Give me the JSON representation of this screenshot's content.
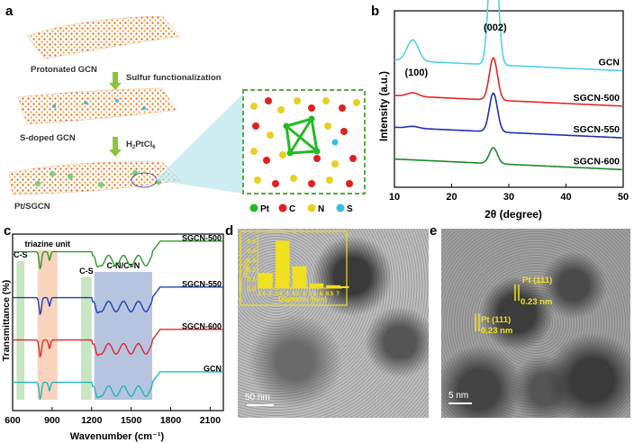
{
  "panel_labels": {
    "a": "a",
    "b": "b",
    "c": "c",
    "d": "d",
    "e": "e"
  },
  "panel_a": {
    "sheet1_label": "Protonated GCN",
    "step1": "Sulfur  functionalization",
    "sheet2_label": "S-doped GCN",
    "step2_main": "H",
    "step2_sub1": "2",
    "step2_mid": "PtCl",
    "step2_sub2": "6",
    "sheet3_label": "Pt/SGCN",
    "legend": [
      {
        "label": "Pt",
        "color": "#22bb22"
      },
      {
        "label": "C",
        "color": "#e02020"
      },
      {
        "label": "N",
        "color": "#e8d020"
      },
      {
        "label": "S",
        "color": "#33c0e0"
      }
    ]
  },
  "chart_data": [
    {
      "panel": "b",
      "type": "line",
      "xlabel": "2θ (degree)",
      "ylabel": "Intensity (a.u.)",
      "xlim": [
        10,
        50
      ],
      "xticks": [
        "10",
        "20",
        "30",
        "40",
        "50"
      ],
      "annotations": [
        {
          "text": "(100)",
          "x": 13.2
        },
        {
          "text": "(002)",
          "x": 27.3
        }
      ],
      "series": [
        {
          "name": "GCN",
          "color": "#4fd2e6",
          "baseline": 0.66,
          "peak002": 0.9,
          "peak100": 0.12
        },
        {
          "name": "SGCN-500",
          "color": "#e02828",
          "baseline": 0.46,
          "peak002": 0.24,
          "peak100": 0.02
        },
        {
          "name": "SGCN-550",
          "color": "#2030b0",
          "baseline": 0.28,
          "peak002": 0.22,
          "peak100": 0.01
        },
        {
          "name": "SGCN-600",
          "color": "#1a8a2a",
          "baseline": 0.1,
          "peak002": 0.09,
          "peak100": 0.0
        }
      ]
    },
    {
      "panel": "c",
      "type": "line",
      "xlabel": "Wavenumber (cm⁻¹)",
      "ylabel": "Transmittance (%)",
      "xlim": [
        600,
        2200
      ],
      "xticks": [
        "600",
        "900",
        "1200",
        "1500",
        "1800",
        "2100"
      ],
      "bands": [
        {
          "label": "C-S",
          "range": [
            630,
            690
          ],
          "color": "#b7dcb0"
        },
        {
          "label": "triazine unit",
          "range": [
            790,
            940
          ],
          "color": "#f6c4a8"
        },
        {
          "label": "C-S",
          "range": [
            1120,
            1200
          ],
          "color": "#b7dcb0"
        },
        {
          "label": "C-N/C=N",
          "range": [
            1220,
            1660
          ],
          "color": "#9fb0d6"
        }
      ],
      "series": [
        {
          "name": "SGCN-500",
          "color": "#2e9a2e",
          "offset": 0.9
        },
        {
          "name": "SGCN-550",
          "color": "#2040b0",
          "offset": 0.64
        },
        {
          "name": "SGCN-600",
          "color": "#e02828",
          "offset": 0.4
        },
        {
          "name": "GCN",
          "color": "#20b8b8",
          "offset": 0.16
        }
      ]
    },
    {
      "panel": "d-inset",
      "type": "bar",
      "xlabel": "Diameter (nm)",
      "ylabel": "Ratio",
      "ylim": [
        0,
        0.55
      ],
      "yticks": [
        "0.0",
        "0.1",
        "0.2",
        "0.3",
        "0.4",
        "0.5"
      ],
      "categories": [
        "2.5",
        "3",
        "3.5",
        "4",
        "4.5",
        "5",
        "5.5",
        "6",
        "6.5",
        "7"
      ],
      "values": [
        0.16,
        0.0,
        0.5,
        0.0,
        0.23,
        0.0,
        0.05,
        0.0,
        0.03,
        0.02
      ],
      "color": "#f0e020"
    }
  ],
  "panel_d": {
    "scale_bar": "50 nm"
  },
  "panel_e": {
    "scale_bar": "5 nm",
    "label1": "Pt (111)",
    "label1b": "0.23 nm",
    "label2": "Pt (111)",
    "label2b": "0.23 nm"
  }
}
